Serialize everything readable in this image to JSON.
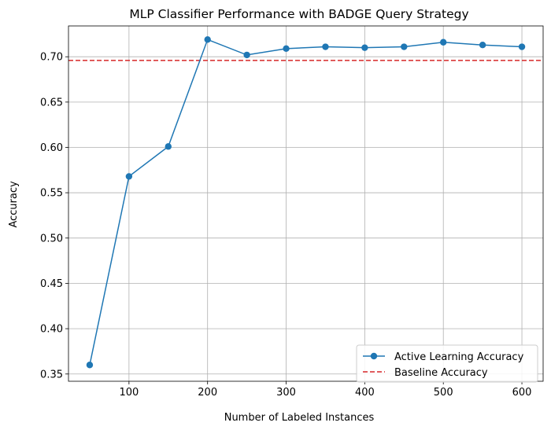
{
  "chart_data": {
    "type": "line",
    "title": "MLP Classifier Performance with BADGE Query Strategy",
    "xlabel": "Number of Labeled Instances",
    "ylabel": "Accuracy",
    "x": [
      50,
      100,
      150,
      200,
      250,
      300,
      350,
      400,
      450,
      500,
      550,
      600
    ],
    "xlim": [
      23,
      627
    ],
    "ylim": [
      0.342,
      0.734
    ],
    "xticks": [
      100,
      200,
      300,
      400,
      500,
      600
    ],
    "yticks": [
      0.35,
      0.4,
      0.45,
      0.5,
      0.55,
      0.6,
      0.65,
      0.7
    ],
    "ytick_labels": [
      "0.35",
      "0.40",
      "0.45",
      "0.50",
      "0.55",
      "0.60",
      "0.65",
      "0.70"
    ],
    "grid": true,
    "legend_position": "bottom-right",
    "series": [
      {
        "name": "Active Learning Accuracy",
        "style": "solid-with-circle-markers",
        "color": "#1f77b4",
        "values": [
          0.36,
          0.568,
          0.601,
          0.719,
          0.702,
          0.709,
          0.711,
          0.71,
          0.711,
          0.716,
          0.713,
          0.711
        ]
      },
      {
        "name": "Baseline Accuracy",
        "style": "dashed-horizontal",
        "color": "#d62728",
        "value": 0.696
      }
    ]
  }
}
